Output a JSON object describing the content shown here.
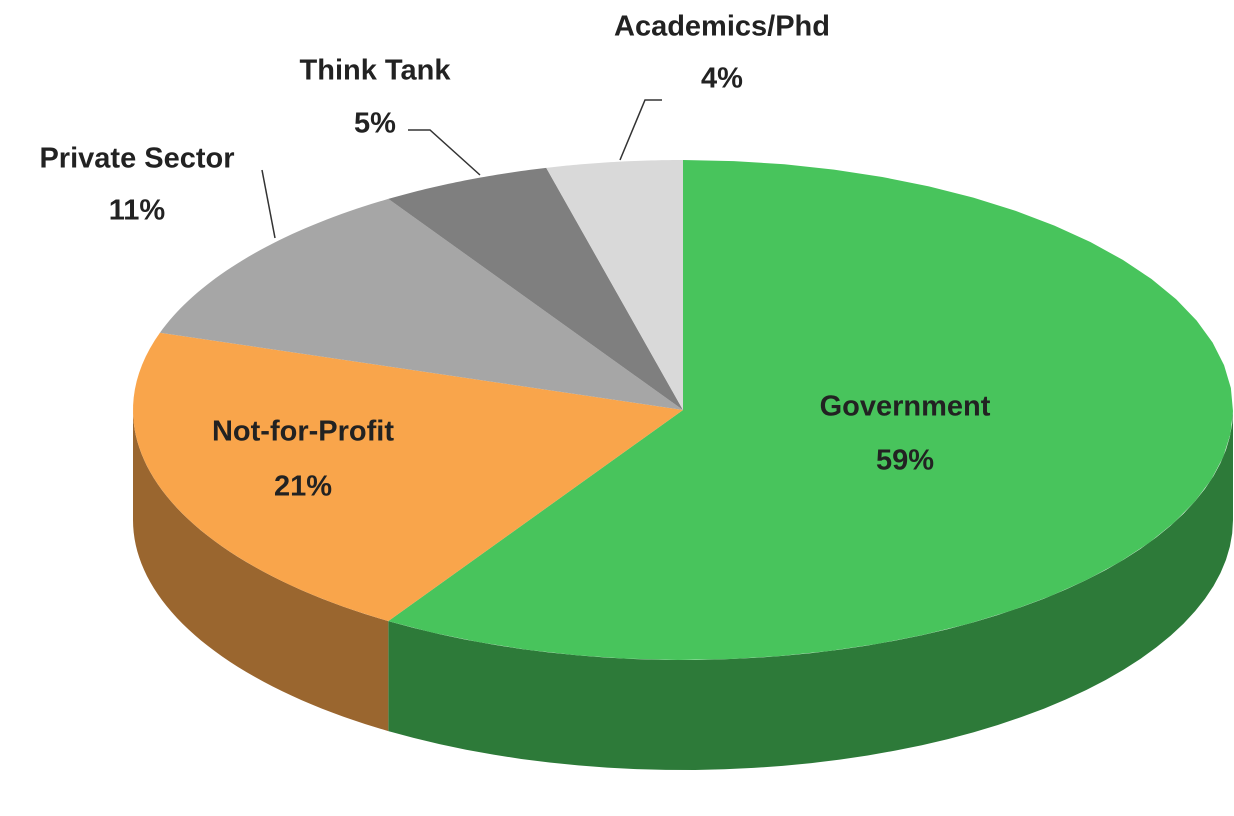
{
  "chart_data": {
    "type": "pie3d",
    "categories": [
      "Government",
      "Not-for-Profit",
      "Private Sector",
      "Think Tank",
      "Academics/Phd"
    ],
    "values": [
      59,
      21,
      11,
      5,
      4
    ],
    "value_labels": [
      "59%",
      "21%",
      "11%",
      "5%",
      "4%"
    ],
    "colors": [
      "#48c45c",
      "#f9a54b",
      "#a6a6a6",
      "#7f7f7f",
      "#d9d9d9"
    ]
  }
}
